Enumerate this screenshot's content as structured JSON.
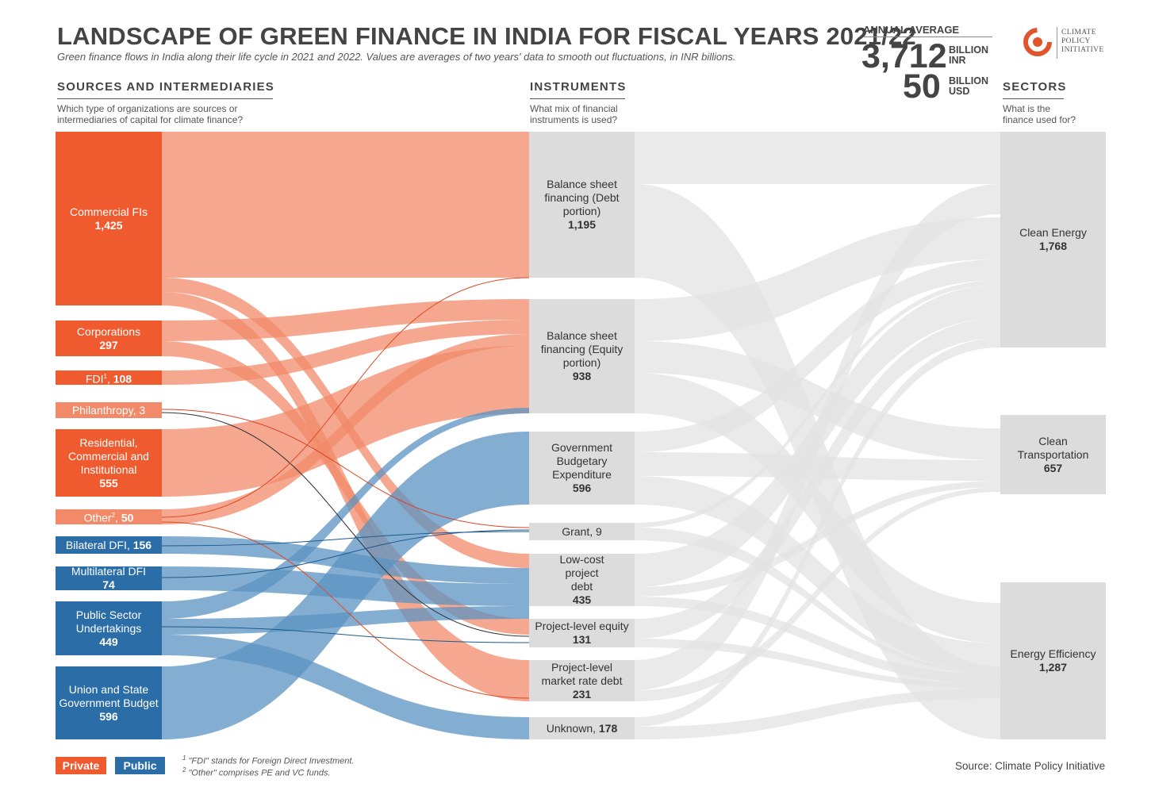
{
  "header": {
    "title": "LANDSCAPE OF GREEN FINANCE IN INDIA FOR FISCAL YEARS 2021/22",
    "subtitle": "Green finance flows in India along their life cycle in 2021 and 2022. Values are averages of two years' data to smooth out fluctuations, in INR billions."
  },
  "annual_average": {
    "label": "ANNUAL AVERAGE",
    "inr_value": "3,712",
    "inr_unit_line1": "BILLION",
    "inr_unit_line2": "INR",
    "usd_value": "50",
    "usd_unit_line1": "BILLION",
    "usd_unit_line2": "USD"
  },
  "logo": {
    "line1": "CLIMATE",
    "line2": "POLICY",
    "line3": "INITIATIVE"
  },
  "columns": {
    "sources": {
      "heading": "SOURCES AND INTERMEDIARIES",
      "question": "Which type of organizations are sources or intermediaries of capital for climate finance?"
    },
    "instruments": {
      "heading": "INSTRUMENTS",
      "question": "What mix of financial instruments is used?"
    },
    "sectors": {
      "heading": "SECTORS",
      "question": "What is the finance used for?"
    }
  },
  "sources": [
    {
      "name": "Commercial FIs",
      "value": "1,425",
      "type": "private"
    },
    {
      "name": "Corporations",
      "value": "297",
      "type": "private"
    },
    {
      "name": "FDI",
      "value": "108",
      "type": "private"
    },
    {
      "name": "Philanthropy",
      "value": "3",
      "type": "private"
    },
    {
      "name": "Residential, Commercial and Institutional",
      "value": "555",
      "type": "private"
    },
    {
      "name": "Other",
      "value": "50",
      "type": "private"
    },
    {
      "name": "Bilateral DFI",
      "value": "156",
      "type": "public"
    },
    {
      "name": "Multilateral DFI",
      "value": "74",
      "type": "public"
    },
    {
      "name": "Public Sector Undertakings",
      "value": "449",
      "type": "public"
    },
    {
      "name": "Union and State Government Budget",
      "value": "596",
      "type": "public"
    }
  ],
  "instruments": [
    {
      "name": "Balance sheet financing (Debt portion)",
      "value": "1,195"
    },
    {
      "name": "Balance sheet financing (Equity portion)",
      "value": "938"
    },
    {
      "name": "Government Budgetary Expenditure",
      "value": "596"
    },
    {
      "name": "Grant",
      "value": "9"
    },
    {
      "name": "Low-cost project debt",
      "value": "435"
    },
    {
      "name": "Project-level equity",
      "value": "131"
    },
    {
      "name": "Project-level market rate debt",
      "value": "231"
    },
    {
      "name": "Unknown",
      "value": "178"
    }
  ],
  "sectors": [
    {
      "name": "Clean Energy",
      "value": "1,768"
    },
    {
      "name": "Clean Transportation",
      "value": "657"
    },
    {
      "name": "Energy Efficiency",
      "value": "1,287"
    }
  ],
  "legend": {
    "private": "Private",
    "public": "Public"
  },
  "colors": {
    "private_node": "#ef5a2e",
    "private_flow": "#f28a6a",
    "public_node": "#2b6da6",
    "public_flow": "#5b93c2",
    "instrument_node": "#dcdcdc",
    "grey_flow": "#e3e3e3"
  },
  "footnotes": {
    "note1": "\"FDI\" stands for Foreign Direct Investment.",
    "note2": "\"Other\" comprises PE and VC funds."
  },
  "source_text": "Source: Climate Policy Initiative"
}
